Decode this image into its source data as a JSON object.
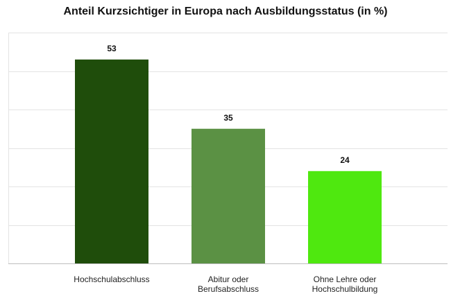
{
  "chart_data": {
    "type": "bar",
    "title": "Anteil Kurzsichtiger in Europa nach Ausbildungsstatus (in %)",
    "categories": [
      "Hochschulabschluss",
      "Abitur oder Berufsabschluss",
      "Ohne Lehre oder Hochschulbildung"
    ],
    "category_lines": [
      [
        "Hochschulabschluss"
      ],
      [
        "Abitur oder",
        "Berufsabschluss"
      ],
      [
        "Ohne Lehre oder",
        "Hochschulbildung"
      ]
    ],
    "values": [
      53,
      35,
      24
    ],
    "colors": [
      "#1f4d0b",
      "#5b9144",
      "#4fe80f"
    ],
    "ylim": [
      0,
      60
    ],
    "ytick_step": 10,
    "grid": true,
    "xlabel": "",
    "ylabel": ""
  }
}
